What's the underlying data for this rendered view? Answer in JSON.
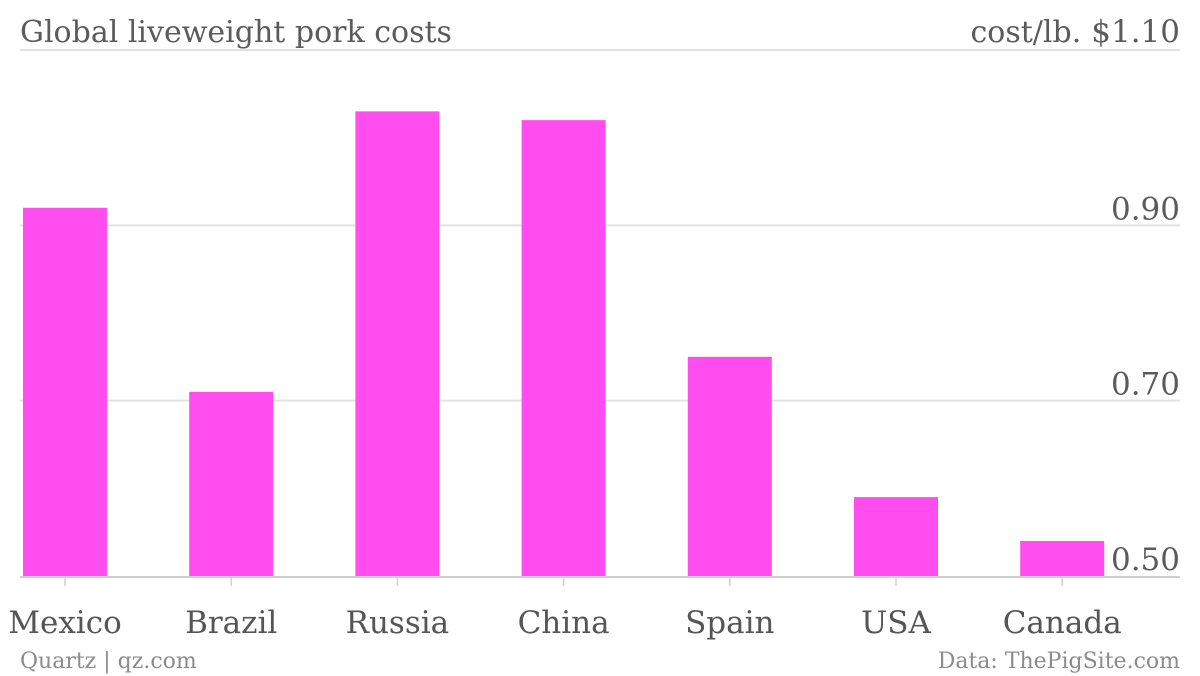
{
  "chart_data": {
    "type": "bar",
    "title": "Global liveweight pork costs",
    "ylabel": "cost/lb.",
    "categories": [
      "Mexico",
      "Brazil",
      "Russia",
      "China",
      "Spain",
      "USA",
      "Canada"
    ],
    "values": [
      0.92,
      0.71,
      1.03,
      1.02,
      0.75,
      0.59,
      0.54
    ],
    "ylim": [
      0.5,
      1.1
    ],
    "yticks": [
      {
        "value": 1.1,
        "label": "$1.10"
      },
      {
        "value": 0.9,
        "label": "0.90"
      },
      {
        "value": 0.7,
        "label": "0.70"
      },
      {
        "value": 0.5,
        "label": "0.50"
      }
    ],
    "grid": true,
    "legend": "none",
    "colors": {
      "bar": "#ff4df0"
    }
  },
  "footer": {
    "source_left": "Quartz | qz.com",
    "source_right": "Data: ThePigSite.com"
  }
}
